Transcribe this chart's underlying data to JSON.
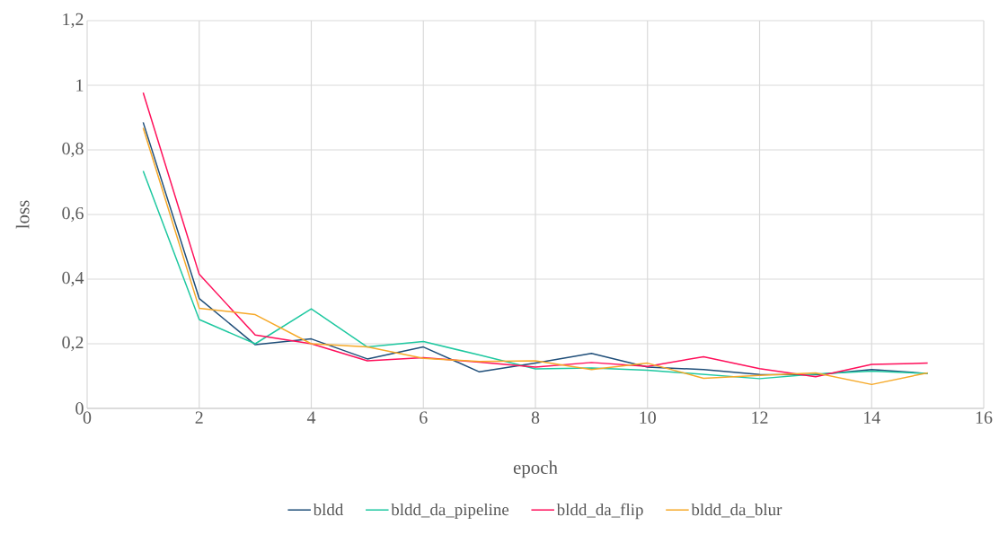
{
  "chart_data": {
    "type": "line",
    "xlabel": "epoch",
    "ylabel": "loss",
    "x": [
      1,
      2,
      3,
      4,
      5,
      6,
      7,
      8,
      9,
      10,
      11,
      12,
      13,
      14,
      15
    ],
    "series": [
      {
        "name": "bldd",
        "color": "#1f4e79",
        "values": [
          0.885,
          0.34,
          0.197,
          0.215,
          0.153,
          0.19,
          0.113,
          0.14,
          0.17,
          0.128,
          0.12,
          0.105,
          0.104,
          0.12,
          0.108
        ]
      },
      {
        "name": "bldd_da_pipeline",
        "color": "#1ec8a0",
        "values": [
          0.735,
          0.275,
          0.2,
          0.308,
          0.19,
          0.207,
          0.165,
          0.122,
          0.125,
          0.118,
          0.105,
          0.092,
          0.106,
          0.115,
          0.108
        ]
      },
      {
        "name": "bldd_da_flip",
        "color": "#ff0f5a",
        "values": [
          0.977,
          0.415,
          0.227,
          0.2,
          0.147,
          0.157,
          0.143,
          0.128,
          0.142,
          0.13,
          0.16,
          0.123,
          0.098,
          0.136,
          0.14
        ]
      },
      {
        "name": "bldd_da_blur",
        "color": "#f6a928",
        "values": [
          0.868,
          0.31,
          0.29,
          0.2,
          0.19,
          0.155,
          0.145,
          0.147,
          0.12,
          0.14,
          0.093,
          0.102,
          0.11,
          0.074,
          0.11
        ]
      }
    ],
    "xlim": [
      0,
      16
    ],
    "xticks": [
      0,
      2,
      4,
      6,
      8,
      10,
      12,
      14,
      16
    ],
    "ylim": [
      0,
      1.2
    ],
    "yticks": [
      0,
      {
        "value": 0.2,
        "label": "0,2"
      },
      {
        "value": 0.4,
        "label": "0,4"
      },
      {
        "value": 0.6,
        "label": "0,6"
      },
      {
        "value": 0.8,
        "label": "0,8"
      },
      1,
      {
        "value": 1.2,
        "label": "1,2"
      }
    ],
    "grid": true,
    "legend": "bottom",
    "line_style": "solid"
  }
}
